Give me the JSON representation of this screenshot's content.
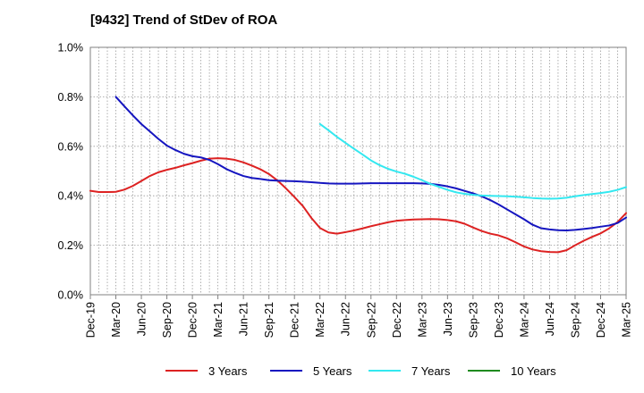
{
  "title": "[9432]  Trend of StDev of ROA",
  "chart_data": {
    "type": "line",
    "title": "[9432]  Trend of StDev of ROA",
    "xlabel": "",
    "ylabel": "",
    "ylim": [
      0,
      1.0
    ],
    "y_ticks": [
      "0.0%",
      "0.2%",
      "0.4%",
      "0.6%",
      "0.8%",
      "1.0%"
    ],
    "x_ticks": [
      "Dec-19",
      "Mar-20",
      "Jun-20",
      "Sep-20",
      "Dec-20",
      "Mar-21",
      "Jun-21",
      "Sep-21",
      "Dec-21",
      "Mar-22",
      "Jun-22",
      "Sep-22",
      "Dec-22",
      "Mar-23",
      "Jun-23",
      "Sep-23",
      "Dec-23",
      "Mar-24",
      "Jun-24",
      "Sep-24",
      "Dec-24",
      "Mar-25"
    ],
    "grid": "vertical dotted monthly",
    "legend_position": "bottom",
    "series": [
      {
        "name": "3 Years",
        "color": "#dd2222",
        "points": [
          [
            0,
            0.42
          ],
          [
            1,
            0.415
          ],
          [
            2,
            0.415
          ],
          [
            3,
            0.416
          ],
          [
            4,
            0.425
          ],
          [
            5,
            0.44
          ],
          [
            6,
            0.46
          ],
          [
            7,
            0.48
          ],
          [
            8,
            0.495
          ],
          [
            9,
            0.505
          ],
          [
            10,
            0.513
          ],
          [
            11,
            0.523
          ],
          [
            12,
            0.532
          ],
          [
            13,
            0.542
          ],
          [
            14,
            0.55
          ],
          [
            15,
            0.552
          ],
          [
            16,
            0.55
          ],
          [
            17,
            0.545
          ],
          [
            18,
            0.535
          ],
          [
            19,
            0.522
          ],
          [
            20,
            0.507
          ],
          [
            21,
            0.488
          ],
          [
            22,
            0.462
          ],
          [
            23,
            0.43
          ],
          [
            24,
            0.395
          ],
          [
            25,
            0.358
          ],
          [
            26,
            0.31
          ],
          [
            27,
            0.27
          ],
          [
            28,
            0.252
          ],
          [
            29,
            0.247
          ],
          [
            30,
            0.253
          ],
          [
            31,
            0.26
          ],
          [
            32,
            0.268
          ],
          [
            33,
            0.277
          ],
          [
            34,
            0.285
          ],
          [
            35,
            0.293
          ],
          [
            36,
            0.299
          ],
          [
            37,
            0.302
          ],
          [
            38,
            0.304
          ],
          [
            39,
            0.305
          ],
          [
            40,
            0.306
          ],
          [
            41,
            0.305
          ],
          [
            42,
            0.302
          ],
          [
            43,
            0.297
          ],
          [
            44,
            0.287
          ],
          [
            45,
            0.272
          ],
          [
            46,
            0.258
          ],
          [
            47,
            0.247
          ],
          [
            48,
            0.24
          ],
          [
            49,
            0.228
          ],
          [
            50,
            0.212
          ],
          [
            51,
            0.195
          ],
          [
            52,
            0.183
          ],
          [
            53,
            0.176
          ],
          [
            54,
            0.173
          ],
          [
            55,
            0.172
          ],
          [
            56,
            0.18
          ],
          [
            57,
            0.2
          ],
          [
            58,
            0.218
          ],
          [
            59,
            0.234
          ],
          [
            60,
            0.248
          ],
          [
            61,
            0.268
          ],
          [
            62,
            0.294
          ],
          [
            63,
            0.33
          ]
        ]
      },
      {
        "name": "5 Years",
        "color": "#1515c0",
        "points": [
          [
            3,
            0.8
          ],
          [
            4,
            0.762
          ],
          [
            5,
            0.725
          ],
          [
            6,
            0.69
          ],
          [
            7,
            0.66
          ],
          [
            8,
            0.63
          ],
          [
            9,
            0.603
          ],
          [
            10,
            0.585
          ],
          [
            11,
            0.57
          ],
          [
            12,
            0.56
          ],
          [
            13,
            0.555
          ],
          [
            14,
            0.545
          ],
          [
            15,
            0.528
          ],
          [
            16,
            0.508
          ],
          [
            17,
            0.493
          ],
          [
            18,
            0.48
          ],
          [
            19,
            0.472
          ],
          [
            20,
            0.468
          ],
          [
            21,
            0.463
          ],
          [
            22,
            0.461
          ],
          [
            23,
            0.46
          ],
          [
            24,
            0.459
          ],
          [
            25,
            0.457
          ],
          [
            26,
            0.455
          ],
          [
            27,
            0.452
          ],
          [
            28,
            0.45
          ],
          [
            29,
            0.449
          ],
          [
            30,
            0.449
          ],
          [
            31,
            0.449
          ],
          [
            32,
            0.45
          ],
          [
            33,
            0.451
          ],
          [
            34,
            0.451
          ],
          [
            35,
            0.451
          ],
          [
            36,
            0.451
          ],
          [
            37,
            0.451
          ],
          [
            38,
            0.451
          ],
          [
            39,
            0.45
          ],
          [
            40,
            0.448
          ],
          [
            41,
            0.444
          ],
          [
            42,
            0.438
          ],
          [
            43,
            0.43
          ],
          [
            44,
            0.42
          ],
          [
            45,
            0.41
          ],
          [
            46,
            0.398
          ],
          [
            47,
            0.383
          ],
          [
            48,
            0.365
          ],
          [
            49,
            0.345
          ],
          [
            50,
            0.325
          ],
          [
            51,
            0.305
          ],
          [
            52,
            0.283
          ],
          [
            53,
            0.269
          ],
          [
            54,
            0.264
          ],
          [
            55,
            0.261
          ],
          [
            56,
            0.26
          ],
          [
            57,
            0.262
          ],
          [
            58,
            0.266
          ],
          [
            59,
            0.27
          ],
          [
            60,
            0.275
          ],
          [
            61,
            0.28
          ],
          [
            62,
            0.29
          ],
          [
            63,
            0.312
          ]
        ]
      },
      {
        "name": "7 Years",
        "color": "#33e8f0",
        "points": [
          [
            27,
            0.69
          ],
          [
            28,
            0.665
          ],
          [
            29,
            0.638
          ],
          [
            30,
            0.614
          ],
          [
            31,
            0.59
          ],
          [
            32,
            0.567
          ],
          [
            33,
            0.543
          ],
          [
            34,
            0.524
          ],
          [
            35,
            0.509
          ],
          [
            36,
            0.498
          ],
          [
            37,
            0.489
          ],
          [
            38,
            0.477
          ],
          [
            39,
            0.463
          ],
          [
            40,
            0.448
          ],
          [
            41,
            0.436
          ],
          [
            42,
            0.424
          ],
          [
            43,
            0.414
          ],
          [
            44,
            0.408
          ],
          [
            45,
            0.404
          ],
          [
            46,
            0.401
          ],
          [
            47,
            0.4
          ],
          [
            48,
            0.399
          ],
          [
            49,
            0.398
          ],
          [
            50,
            0.396
          ],
          [
            51,
            0.394
          ],
          [
            52,
            0.391
          ],
          [
            53,
            0.389
          ],
          [
            54,
            0.388
          ],
          [
            55,
            0.389
          ],
          [
            56,
            0.392
          ],
          [
            57,
            0.398
          ],
          [
            58,
            0.403
          ],
          [
            59,
            0.407
          ],
          [
            60,
            0.411
          ],
          [
            61,
            0.416
          ],
          [
            62,
            0.424
          ],
          [
            63,
            0.435
          ]
        ]
      },
      {
        "name": "10 Years",
        "color": "#1f8a1f",
        "points": []
      }
    ]
  }
}
